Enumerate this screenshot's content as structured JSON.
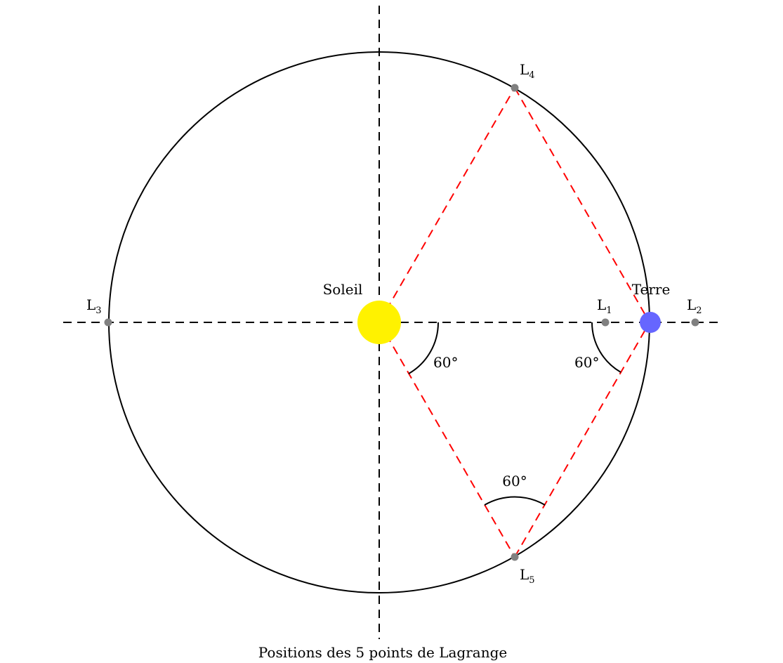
{
  "title": "Positions des 5 points de Lagrange",
  "bodies": {
    "sun": {
      "label": "Soleil",
      "color": "#fff200"
    },
    "earth": {
      "label": "Terre",
      "color": "#6666ff"
    }
  },
  "lagrange_points": [
    {
      "id": "L1",
      "base": "L",
      "sub": "1"
    },
    {
      "id": "L2",
      "base": "L",
      "sub": "2"
    },
    {
      "id": "L3",
      "base": "L",
      "sub": "3"
    },
    {
      "id": "L4",
      "base": "L",
      "sub": "4"
    },
    {
      "id": "L5",
      "base": "L",
      "sub": "5"
    }
  ],
  "angles": {
    "sun_angle": "60°",
    "earth_angle": "60°",
    "l5_angle": "60°"
  },
  "colors": {
    "orbit": "#000000",
    "axes": "#000000",
    "triangle": "#ff0000",
    "points": "#808080"
  }
}
